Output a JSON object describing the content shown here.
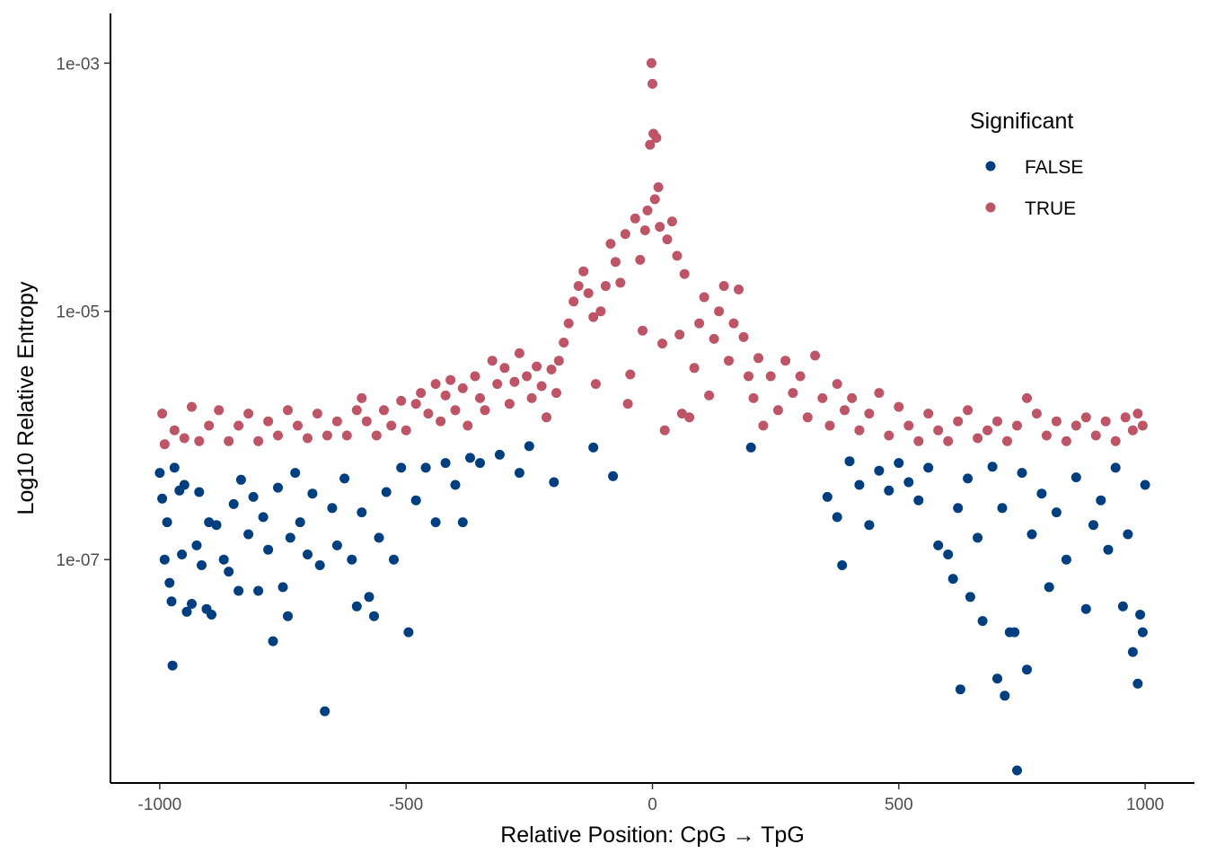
{
  "chart_data": {
    "type": "scatter",
    "title": "",
    "xlabel": "Relative Position: CpG → TpG",
    "ylabel": "Log10 Relative Entropy",
    "xlim": [
      -1100,
      1100
    ],
    "ylim_log10": [
      -8.8,
      -2.6
    ],
    "y_scale": "log10",
    "x_ticks": [
      -1000,
      -500,
      0,
      500,
      1000
    ],
    "x_tick_labels": [
      "-1000",
      "-500",
      "0",
      "500",
      "1000"
    ],
    "y_ticks": [
      0.001,
      1e-05,
      1e-07
    ],
    "y_tick_labels": [
      "1e-03",
      "1e-05",
      "1e-07"
    ],
    "grid": false,
    "legend": {
      "title": "Significant",
      "position": "top-right"
    },
    "colors": {
      "FALSE": "#003f7f",
      "TRUE": "#bd5566"
    },
    "series": [
      {
        "name": "FALSE",
        "color": "#003f7f",
        "points": [
          [
            -1000,
            5e-07
          ],
          [
            -995,
            3.1e-07
          ],
          [
            -990,
            1e-07
          ],
          [
            -985,
            2e-07
          ],
          [
            -980,
            6.5e-08
          ],
          [
            -976,
            4.6e-08
          ],
          [
            -974,
            1.4e-08
          ],
          [
            -970,
            5.5e-07
          ],
          [
            -960,
            3.6e-07
          ],
          [
            -955,
            1.1e-07
          ],
          [
            -950,
            4e-07
          ],
          [
            -945,
            3.8e-08
          ],
          [
            -935,
            4.4e-08
          ],
          [
            -925,
            1.3e-07
          ],
          [
            -920,
            3.5e-07
          ],
          [
            -915,
            9e-08
          ],
          [
            -905,
            4e-08
          ],
          [
            -900,
            2e-07
          ],
          [
            -895,
            3.6e-08
          ],
          [
            -885,
            1.9e-07
          ],
          [
            -870,
            1e-07
          ],
          [
            -860,
            8e-08
          ],
          [
            -850,
            2.8e-07
          ],
          [
            -840,
            5.6e-08
          ],
          [
            -835,
            4.4e-07
          ],
          [
            -820,
            1.6e-07
          ],
          [
            -810,
            3.2e-07
          ],
          [
            -800,
            5.6e-08
          ],
          [
            -790,
            2.2e-07
          ],
          [
            -780,
            1.2e-07
          ],
          [
            -770,
            2.2e-08
          ],
          [
            -760,
            3.8e-07
          ],
          [
            -750,
            6e-08
          ],
          [
            -740,
            3.5e-08
          ],
          [
            -735,
            1.5e-07
          ],
          [
            -725,
            5e-07
          ],
          [
            -715,
            2e-07
          ],
          [
            -700,
            1.1e-07
          ],
          [
            -690,
            3.4e-07
          ],
          [
            -675,
            9e-08
          ],
          [
            -665,
            6e-09
          ],
          [
            -650,
            2.6e-07
          ],
          [
            -640,
            1.3e-07
          ],
          [
            -625,
            4.5e-07
          ],
          [
            -610,
            1e-07
          ],
          [
            -600,
            4.2e-08
          ],
          [
            -590,
            2.4e-07
          ],
          [
            -575,
            5e-08
          ],
          [
            -565,
            3.5e-08
          ],
          [
            -555,
            1.5e-07
          ],
          [
            -540,
            3.5e-07
          ],
          [
            -525,
            1e-07
          ],
          [
            -510,
            5.5e-07
          ],
          [
            -495,
            2.6e-08
          ],
          [
            -480,
            3e-07
          ],
          [
            -460,
            5.5e-07
          ],
          [
            -440,
            2e-07
          ],
          [
            -420,
            6e-07
          ],
          [
            -400,
            4e-07
          ],
          [
            -385,
            2e-07
          ],
          [
            -370,
            6.6e-07
          ],
          [
            -350,
            6e-07
          ],
          [
            -310,
            7e-07
          ],
          [
            -270,
            5e-07
          ],
          [
            -250,
            8.2e-07
          ],
          [
            -200,
            4.2e-07
          ],
          [
            -120,
            8e-07
          ],
          [
            -80,
            4.7e-07
          ],
          [
            200,
            8e-07
          ],
          [
            355,
            3.2e-07
          ],
          [
            375,
            2.2e-07
          ],
          [
            385,
            9e-08
          ],
          [
            400,
            6.2e-07
          ],
          [
            420,
            4e-07
          ],
          [
            440,
            1.9e-07
          ],
          [
            460,
            5.2e-07
          ],
          [
            480,
            3.6e-07
          ],
          [
            500,
            6e-07
          ],
          [
            520,
            4.2e-07
          ],
          [
            540,
            3e-07
          ],
          [
            560,
            5.5e-07
          ],
          [
            580,
            1.3e-07
          ],
          [
            600,
            1.1e-07
          ],
          [
            610,
            7e-08
          ],
          [
            620,
            2.6e-07
          ],
          [
            625,
            9e-09
          ],
          [
            640,
            4.5e-07
          ],
          [
            645,
            5e-08
          ],
          [
            660,
            1.5e-07
          ],
          [
            670,
            3.2e-08
          ],
          [
            690,
            5.6e-07
          ],
          [
            700,
            1.1e-08
          ],
          [
            710,
            2.6e-07
          ],
          [
            715,
            8e-09
          ],
          [
            725,
            2.6e-08
          ],
          [
            735,
            2.6e-08
          ],
          [
            740,
            2e-09
          ],
          [
            750,
            5e-07
          ],
          [
            760,
            1.3e-08
          ],
          [
            770,
            1.6e-07
          ],
          [
            790,
            3.4e-07
          ],
          [
            805,
            6e-08
          ],
          [
            820,
            2.4e-07
          ],
          [
            840,
            1e-07
          ],
          [
            860,
            4.6e-07
          ],
          [
            880,
            4e-08
          ],
          [
            895,
            1.9e-07
          ],
          [
            910,
            3e-07
          ],
          [
            925,
            1.2e-07
          ],
          [
            940,
            5.5e-07
          ],
          [
            955,
            4.2e-08
          ],
          [
            965,
            1.6e-07
          ],
          [
            975,
            1.8e-08
          ],
          [
            985,
            1e-08
          ],
          [
            990,
            3.6e-08
          ],
          [
            995,
            2.6e-08
          ],
          [
            1000,
            4e-07
          ]
        ]
      },
      {
        "name": "TRUE",
        "color": "#bd5566",
        "points": [
          [
            -995,
            1.5e-06
          ],
          [
            -990,
            8.5e-07
          ],
          [
            -970,
            1.1e-06
          ],
          [
            -950,
            9.5e-07
          ],
          [
            -935,
            1.7e-06
          ],
          [
            -920,
            9e-07
          ],
          [
            -900,
            1.2e-06
          ],
          [
            -880,
            1.6e-06
          ],
          [
            -860,
            9e-07
          ],
          [
            -840,
            1.2e-06
          ],
          [
            -820,
            1.5e-06
          ],
          [
            -800,
            9e-07
          ],
          [
            -780,
            1.3e-06
          ],
          [
            -760,
            1e-06
          ],
          [
            -740,
            1.6e-06
          ],
          [
            -720,
            1.2e-06
          ],
          [
            -700,
            9.5e-07
          ],
          [
            -680,
            1.5e-06
          ],
          [
            -660,
            1e-06
          ],
          [
            -640,
            1.3e-06
          ],
          [
            -620,
            1e-06
          ],
          [
            -600,
            1.6e-06
          ],
          [
            -590,
            2e-06
          ],
          [
            -580,
            1.3e-06
          ],
          [
            -560,
            1e-06
          ],
          [
            -545,
            1.6e-06
          ],
          [
            -530,
            1.2e-06
          ],
          [
            -510,
            1.9e-06
          ],
          [
            -500,
            1.1e-06
          ],
          [
            -480,
            1.8e-06
          ],
          [
            -470,
            2.2e-06
          ],
          [
            -455,
            1.5e-06
          ],
          [
            -440,
            2.6e-06
          ],
          [
            -430,
            1.3e-06
          ],
          [
            -420,
            2.1e-06
          ],
          [
            -410,
            2.8e-06
          ],
          [
            -400,
            1.6e-06
          ],
          [
            -385,
            2.4e-06
          ],
          [
            -375,
            1.2e-06
          ],
          [
            -360,
            3e-06
          ],
          [
            -350,
            2e-06
          ],
          [
            -340,
            1.6e-06
          ],
          [
            -325,
            4e-06
          ],
          [
            -315,
            2.6e-06
          ],
          [
            -300,
            3.5e-06
          ],
          [
            -290,
            1.8e-06
          ],
          [
            -280,
            2.7e-06
          ],
          [
            -270,
            4.6e-06
          ],
          [
            -255,
            3e-06
          ],
          [
            -245,
            2e-06
          ],
          [
            -235,
            3.6e-06
          ],
          [
            -225,
            2.5e-06
          ],
          [
            -215,
            1.4e-06
          ],
          [
            -205,
            3.4e-06
          ],
          [
            -195,
            2.2e-06
          ],
          [
            -190,
            4e-06
          ],
          [
            -180,
            5.6e-06
          ],
          [
            -170,
            8e-06
          ],
          [
            -160,
            1.2e-05
          ],
          [
            -150,
            1.6e-05
          ],
          [
            -140,
            2.1e-05
          ],
          [
            -130,
            1.4e-05
          ],
          [
            -120,
            9e-06
          ],
          [
            -115,
            2.6e-06
          ],
          [
            -105,
            1e-05
          ],
          [
            -95,
            1.6e-05
          ],
          [
            -85,
            3.5e-05
          ],
          [
            -75,
            2.5e-05
          ],
          [
            -65,
            1.7e-05
          ],
          [
            -55,
            4.2e-05
          ],
          [
            -50,
            1.8e-06
          ],
          [
            -45,
            3.1e-06
          ],
          [
            -35,
            5.6e-05
          ],
          [
            -25,
            2.6e-05
          ],
          [
            -20,
            7e-06
          ],
          [
            -15,
            4.5e-05
          ],
          [
            -10,
            6.5e-05
          ],
          [
            -5,
            0.00022
          ],
          [
            -2,
            0.001
          ],
          [
            0,
            0.00068
          ],
          [
            2,
            0.00027
          ],
          [
            5,
            8e-05
          ],
          [
            8,
            0.00025
          ],
          [
            12,
            0.0001
          ],
          [
            15,
            4.8e-05
          ],
          [
            20,
            5.5e-06
          ],
          [
            25,
            1.1e-06
          ],
          [
            30,
            3.8e-05
          ],
          [
            40,
            5.3e-05
          ],
          [
            50,
            2.8e-05
          ],
          [
            55,
            6.5e-06
          ],
          [
            60,
            1.5e-06
          ],
          [
            65,
            2e-05
          ],
          [
            75,
            1.4e-06
          ],
          [
            85,
            3.5e-06
          ],
          [
            95,
            8e-06
          ],
          [
            105,
            1.3e-05
          ],
          [
            115,
            2.1e-06
          ],
          [
            125,
            6e-06
          ],
          [
            135,
            1e-05
          ],
          [
            145,
            1.6e-05
          ],
          [
            155,
            4e-06
          ],
          [
            165,
            8e-06
          ],
          [
            175,
            1.5e-05
          ],
          [
            185,
            6.2e-06
          ],
          [
            195,
            3e-06
          ],
          [
            205,
            2e-06
          ],
          [
            215,
            4.2e-06
          ],
          [
            225,
            1.2e-06
          ],
          [
            240,
            3e-06
          ],
          [
            255,
            1.6e-06
          ],
          [
            270,
            4e-06
          ],
          [
            285,
            2.2e-06
          ],
          [
            300,
            3e-06
          ],
          [
            315,
            1.4e-06
          ],
          [
            330,
            4.4e-06
          ],
          [
            345,
            2e-06
          ],
          [
            360,
            1.2e-06
          ],
          [
            375,
            2.6e-06
          ],
          [
            390,
            1.6e-06
          ],
          [
            405,
            2e-06
          ],
          [
            420,
            1.1e-06
          ],
          [
            440,
            1.5e-06
          ],
          [
            460,
            2.2e-06
          ],
          [
            480,
            1e-06
          ],
          [
            500,
            1.7e-06
          ],
          [
            520,
            1.2e-06
          ],
          [
            540,
            9e-07
          ],
          [
            560,
            1.5e-06
          ],
          [
            580,
            1.1e-06
          ],
          [
            600,
            9e-07
          ],
          [
            620,
            1.3e-06
          ],
          [
            640,
            1.6e-06
          ],
          [
            660,
            9.5e-07
          ],
          [
            680,
            1.1e-06
          ],
          [
            700,
            1.3e-06
          ],
          [
            720,
            9e-07
          ],
          [
            740,
            1.2e-06
          ],
          [
            760,
            2e-06
          ],
          [
            780,
            1.5e-06
          ],
          [
            800,
            1e-06
          ],
          [
            820,
            1.3e-06
          ],
          [
            840,
            9e-07
          ],
          [
            860,
            1.2e-06
          ],
          [
            880,
            1.4e-06
          ],
          [
            900,
            1e-06
          ],
          [
            920,
            1.3e-06
          ],
          [
            940,
            9e-07
          ],
          [
            960,
            1.4e-06
          ],
          [
            975,
            1.1e-06
          ],
          [
            985,
            1.5e-06
          ],
          [
            995,
            1.2e-06
          ]
        ]
      }
    ]
  }
}
